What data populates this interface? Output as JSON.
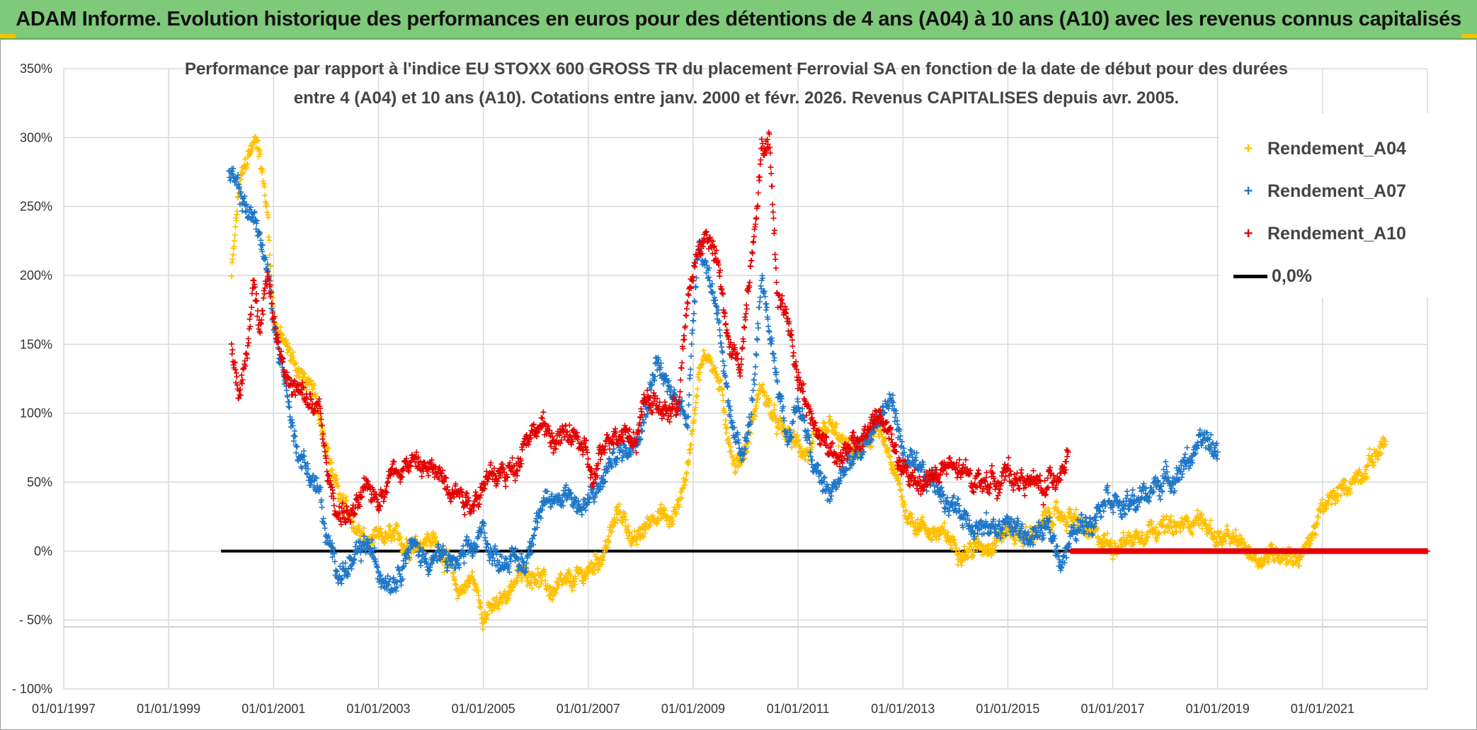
{
  "header": {
    "title": "ADAM Informe. Evolution historique des performances en euros pour des détentions de 4 ans (A04) à 10 ans (A10) avec les revenus connus capitalisés"
  },
  "chart_data": {
    "type": "scatter",
    "title_line1": "Performance par rapport à l'indice EU STOXX 600 GROSS TR  du placement Ferrovial SA en fonction de la date de début pour des durées",
    "title_line2": "entre 4 (A04) et 10 ans (A10). Cotations entre janv. 2000 et févr. 2026. Revenus CAPITALISES depuis avr. 2005.",
    "x_axis": {
      "type": "date",
      "min_year": 1997.0,
      "max_year": 2023.0,
      "tick_labels": [
        "01/01/1997",
        "01/01/1999",
        "01/01/2001",
        "01/01/2003",
        "01/01/2005",
        "01/01/2007",
        "01/01/2009",
        "01/01/2011",
        "01/01/2013",
        "01/01/2015",
        "01/01/2017",
        "01/01/2019",
        "01/01/2021"
      ]
    },
    "y_axis": {
      "unit": "%",
      "min": -100,
      "max": 350,
      "step": 50,
      "tick_labels": [
        "- 100%",
        "- 50%",
        "0%",
        "50%",
        "100%",
        "150%",
        "200%",
        "250%",
        "300%",
        "350%"
      ]
    },
    "series": [
      {
        "name": "Rendement_A04",
        "color": "#ffc000",
        "marker": "+",
        "anchors": [
          [
            2000.2,
            200
          ],
          [
            2000.35,
            265
          ],
          [
            2000.55,
            290
          ],
          [
            2000.7,
            300
          ],
          [
            2000.9,
            240
          ],
          [
            2001.0,
            170
          ],
          [
            2001.2,
            150
          ],
          [
            2001.5,
            130
          ],
          [
            2001.8,
            110
          ],
          [
            2002.0,
            80
          ],
          [
            2002.2,
            45
          ],
          [
            2002.5,
            20
          ],
          [
            2002.8,
            5
          ],
          [
            2003.2,
            10
          ],
          [
            2003.6,
            5
          ],
          [
            2004.0,
            10
          ],
          [
            2004.3,
            -5
          ],
          [
            2004.5,
            -30
          ],
          [
            2004.8,
            -20
          ],
          [
            2005.0,
            -45
          ],
          [
            2005.3,
            -40
          ],
          [
            2005.6,
            -20
          ],
          [
            2006.0,
            -15
          ],
          [
            2006.3,
            -30
          ],
          [
            2006.6,
            -25
          ],
          [
            2007.0,
            -15
          ],
          [
            2007.3,
            0
          ],
          [
            2007.6,
            30
          ],
          [
            2007.9,
            5
          ],
          [
            2008.3,
            30
          ],
          [
            2008.6,
            20
          ],
          [
            2008.9,
            60
          ],
          [
            2009.1,
            130
          ],
          [
            2009.3,
            145
          ],
          [
            2009.5,
            120
          ],
          [
            2009.8,
            60
          ],
          [
            2010.0,
            75
          ],
          [
            2010.3,
            120
          ],
          [
            2010.6,
            90
          ],
          [
            2010.9,
            80
          ],
          [
            2011.2,
            70
          ],
          [
            2011.6,
            90
          ],
          [
            2011.9,
            75
          ],
          [
            2012.2,
            70
          ],
          [
            2012.5,
            90
          ],
          [
            2012.8,
            60
          ],
          [
            2013.1,
            25
          ],
          [
            2013.5,
            15
          ],
          [
            2013.8,
            10
          ],
          [
            2014.2,
            0
          ],
          [
            2014.6,
            5
          ],
          [
            2015.0,
            15
          ],
          [
            2015.4,
            10
          ],
          [
            2015.8,
            25
          ],
          [
            2016.2,
            25
          ],
          [
            2016.6,
            10
          ],
          [
            2017.0,
            5
          ],
          [
            2017.4,
            10
          ],
          [
            2017.8,
            20
          ],
          [
            2018.2,
            15
          ],
          [
            2018.6,
            25
          ],
          [
            2019.0,
            10
          ],
          [
            2019.4,
            5
          ],
          [
            2019.8,
            -5
          ],
          [
            2020.2,
            0
          ],
          [
            2020.6,
            -5
          ],
          [
            2021.0,
            30
          ],
          [
            2021.4,
            45
          ],
          [
            2021.8,
            60
          ],
          [
            2022.1,
            75
          ],
          [
            2022.2,
            80
          ]
        ],
        "noise": 10
      },
      {
        "name": "Rendement_A07",
        "color": "#1f77c8",
        "marker": "+",
        "anchors": [
          [
            2000.15,
            275
          ],
          [
            2000.4,
            255
          ],
          [
            2000.7,
            235
          ],
          [
            2000.9,
            200
          ],
          [
            2001.0,
            165
          ],
          [
            2001.2,
            130
          ],
          [
            2001.4,
            80
          ],
          [
            2001.7,
            55
          ],
          [
            2001.9,
            40
          ],
          [
            2002.0,
            5
          ],
          [
            2002.3,
            -15
          ],
          [
            2002.5,
            -10
          ],
          [
            2002.8,
            5
          ],
          [
            2003.0,
            -15
          ],
          [
            2003.3,
            -20
          ],
          [
            2003.6,
            5
          ],
          [
            2003.9,
            -5
          ],
          [
            2004.2,
            -5
          ],
          [
            2004.5,
            -10
          ],
          [
            2004.8,
            0
          ],
          [
            2005.0,
            15
          ],
          [
            2005.2,
            -5
          ],
          [
            2005.5,
            -5
          ],
          [
            2005.8,
            -10
          ],
          [
            2006.0,
            25
          ],
          [
            2006.3,
            35
          ],
          [
            2006.6,
            45
          ],
          [
            2006.9,
            30
          ],
          [
            2007.2,
            45
          ],
          [
            2007.5,
            70
          ],
          [
            2007.8,
            75
          ],
          [
            2008.1,
            105
          ],
          [
            2008.3,
            140
          ],
          [
            2008.6,
            110
          ],
          [
            2008.9,
            100
          ],
          [
            2009.1,
            230
          ],
          [
            2009.3,
            200
          ],
          [
            2009.5,
            170
          ],
          [
            2009.7,
            90
          ],
          [
            2009.9,
            70
          ],
          [
            2010.1,
            95
          ],
          [
            2010.3,
            190
          ],
          [
            2010.5,
            150
          ],
          [
            2010.8,
            80
          ],
          [
            2011.0,
            110
          ],
          [
            2011.3,
            60
          ],
          [
            2011.6,
            40
          ],
          [
            2011.9,
            60
          ],
          [
            2012.2,
            70
          ],
          [
            2012.5,
            95
          ],
          [
            2012.8,
            110
          ],
          [
            2013.0,
            70
          ],
          [
            2013.3,
            55
          ],
          [
            2013.6,
            50
          ],
          [
            2013.9,
            35
          ],
          [
            2014.2,
            25
          ],
          [
            2014.6,
            15
          ],
          [
            2015.0,
            20
          ],
          [
            2015.4,
            10
          ],
          [
            2015.8,
            15
          ],
          [
            2016.0,
            -5
          ],
          [
            2016.3,
            15
          ],
          [
            2016.6,
            25
          ],
          [
            2016.9,
            45
          ],
          [
            2017.2,
            30
          ],
          [
            2017.6,
            40
          ],
          [
            2017.9,
            50
          ],
          [
            2018.2,
            55
          ],
          [
            2018.5,
            70
          ],
          [
            2018.8,
            80
          ],
          [
            2019.0,
            70
          ]
        ],
        "noise": 12
      },
      {
        "name": "Rendement_A10",
        "color": "#e60000",
        "marker": "+",
        "anchors": [
          [
            2000.2,
            150
          ],
          [
            2000.35,
            115
          ],
          [
            2000.5,
            140
          ],
          [
            2000.6,
            190
          ],
          [
            2000.75,
            170
          ],
          [
            2000.9,
            205
          ],
          [
            2001.0,
            170
          ],
          [
            2001.3,
            120
          ],
          [
            2001.6,
            110
          ],
          [
            2001.9,
            100
          ],
          [
            2002.0,
            60
          ],
          [
            2002.2,
            30
          ],
          [
            2002.5,
            25
          ],
          [
            2002.8,
            45
          ],
          [
            2003.0,
            40
          ],
          [
            2003.3,
            60
          ],
          [
            2003.6,
            65
          ],
          [
            2003.9,
            60
          ],
          [
            2004.2,
            55
          ],
          [
            2004.5,
            45
          ],
          [
            2004.8,
            35
          ],
          [
            2005.0,
            50
          ],
          [
            2005.3,
            55
          ],
          [
            2005.6,
            60
          ],
          [
            2005.8,
            85
          ],
          [
            2006.1,
            90
          ],
          [
            2006.4,
            80
          ],
          [
            2006.7,
            85
          ],
          [
            2006.9,
            75
          ],
          [
            2007.1,
            50
          ],
          [
            2007.4,
            85
          ],
          [
            2007.7,
            90
          ],
          [
            2007.9,
            80
          ],
          [
            2008.1,
            115
          ],
          [
            2008.4,
            100
          ],
          [
            2008.7,
            105
          ],
          [
            2008.9,
            180
          ],
          [
            2009.1,
            220
          ],
          [
            2009.3,
            230
          ],
          [
            2009.5,
            200
          ],
          [
            2009.7,
            145
          ],
          [
            2009.9,
            135
          ],
          [
            2010.1,
            210
          ],
          [
            2010.3,
            290
          ],
          [
            2010.45,
            300
          ],
          [
            2010.6,
            190
          ],
          [
            2010.8,
            170
          ],
          [
            2011.0,
            130
          ],
          [
            2011.3,
            90
          ],
          [
            2011.6,
            75
          ],
          [
            2011.9,
            70
          ],
          [
            2012.2,
            80
          ],
          [
            2012.5,
            100
          ],
          [
            2012.8,
            80
          ],
          [
            2013.0,
            55
          ],
          [
            2013.3,
            50
          ],
          [
            2013.6,
            55
          ],
          [
            2013.9,
            60
          ],
          [
            2014.2,
            55
          ],
          [
            2014.6,
            50
          ],
          [
            2015.0,
            55
          ],
          [
            2015.4,
            50
          ],
          [
            2015.7,
            45
          ],
          [
            2016.0,
            60
          ],
          [
            2016.15,
            70
          ]
        ],
        "zero_segment": [
          2016.2,
          2023.0
        ],
        "noise": 12
      },
      {
        "name": "0,0%",
        "color": "#000000",
        "type": "line",
        "x": [
          2000.0,
          2016.2
        ],
        "y": [
          0,
          0
        ]
      }
    ],
    "legend_position": "top-right"
  }
}
